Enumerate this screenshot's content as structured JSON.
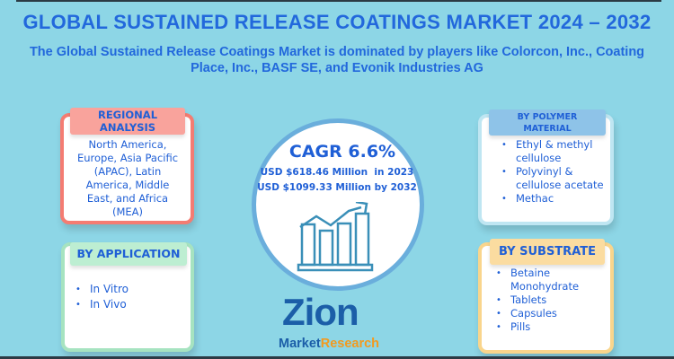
{
  "title": "GLOBAL SUSTAINED RELEASE COATINGS MARKET 2024 – 2032",
  "subtitle": "The Global Sustained Release Coatings Market is dominated by players like Colorcon, Inc., Coating Place, Inc., BASF SE, and Evonik Industries AG",
  "regional": {
    "header": "REGIONAL ANALYSIS",
    "text": "North America, Europe, Asia Pacific (APAC), Latin America, Middle East, and Africa (MEA)"
  },
  "application": {
    "header": "BY APPLICATION",
    "items": [
      "In Vitro",
      "In Vivo"
    ]
  },
  "polymer": {
    "header": "BY POLYMER MATERIAL",
    "items": [
      "Ethyl & methyl cellulose",
      "Polyvinyl & cellulose acetate",
      "Methac"
    ]
  },
  "substrate": {
    "header": "BY SUBSTRATE",
    "items": [
      "Betaine Monohydrate",
      "Tablets",
      "Capsules",
      "Pills"
    ]
  },
  "center": {
    "cagr": "CAGR 6.6%",
    "value_2023": "USD $618.46 Million  in 2023",
    "value_2032": "USD $1099.33 Million by 2032",
    "icon": "growth-chart-icon"
  },
  "logo": {
    "brand": "Zion",
    "sub1": "Market",
    "sub2": "Research"
  },
  "colors": {
    "background": "#8dd6e6",
    "text": "#1f5fd6",
    "regional": "#f47c72",
    "application": "#a6e3c0",
    "polymer": "#8ec3e8",
    "substrate": "#f9d58c"
  }
}
